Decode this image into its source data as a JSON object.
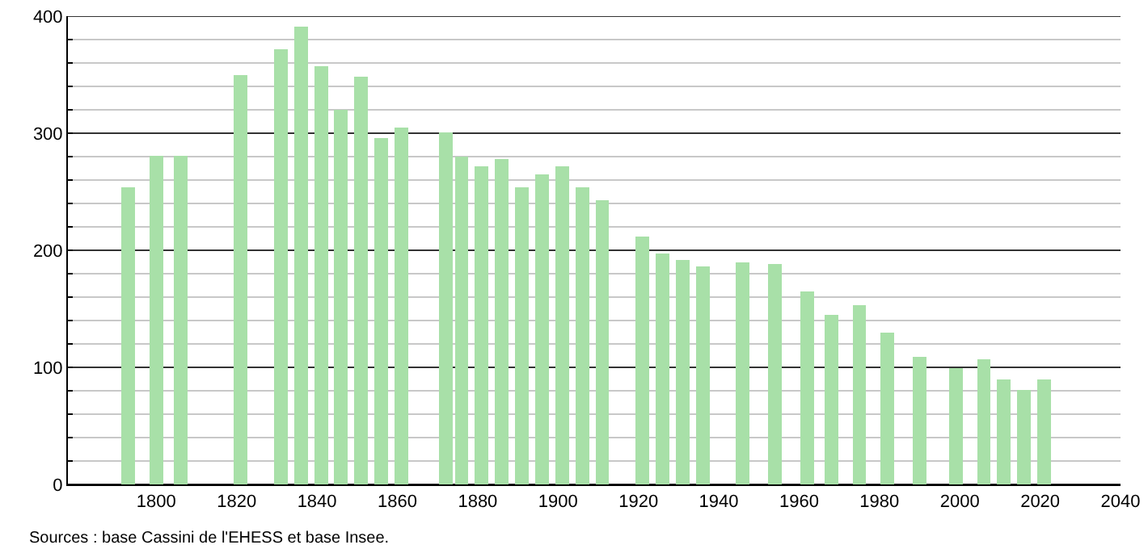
{
  "chart_data": {
    "type": "bar",
    "x": [
      1793,
      1800,
      1806,
      1821,
      1831,
      1836,
      1841,
      1846,
      1851,
      1856,
      1861,
      1872,
      1876,
      1881,
      1886,
      1891,
      1896,
      1901,
      1906,
      1911,
      1921,
      1926,
      1931,
      1936,
      1946,
      1954,
      1962,
      1968,
      1975,
      1982,
      1990,
      1999,
      2006,
      2011,
      2016,
      2021
    ],
    "values": [
      254,
      281,
      281,
      350,
      372,
      391,
      357,
      320,
      348,
      296,
      305,
      301,
      280,
      272,
      278,
      254,
      265,
      272,
      254,
      243,
      212,
      197,
      192,
      186,
      190,
      188,
      165,
      145,
      153,
      130,
      109,
      99,
      107,
      90,
      81,
      90
    ],
    "color": "#a8e0a8",
    "xlim": [
      1778,
      2040
    ],
    "xticks": [
      1800,
      1820,
      1840,
      1860,
      1880,
      1900,
      1920,
      1940,
      1960,
      1980,
      2000,
      2020,
      2040
    ],
    "ylim": [
      0,
      400
    ],
    "yticks": [
      0,
      {
        "value": 20,
        "label": null
      },
      {
        "value": 40,
        "label": null
      },
      {
        "value": 60,
        "label": null
      },
      {
        "value": 80,
        "label": null
      },
      100,
      {
        "value": 120,
        "label": null
      },
      {
        "value": 140,
        "label": null
      },
      {
        "value": 160,
        "label": null
      },
      {
        "value": 180,
        "label": null
      },
      200,
      {
        "value": 220,
        "label": null
      },
      {
        "value": 240,
        "label": null
      },
      {
        "value": 260,
        "label": null
      },
      {
        "value": 280,
        "label": null
      },
      300,
      {
        "value": 320,
        "label": null
      },
      {
        "value": 340,
        "label": null
      },
      {
        "value": 360,
        "label": null
      },
      {
        "value": 380,
        "label": null
      },
      400
    ],
    "grid": "y",
    "annotations": [
      "Sources : base Cassini de l'EHESS et base Insee."
    ]
  }
}
